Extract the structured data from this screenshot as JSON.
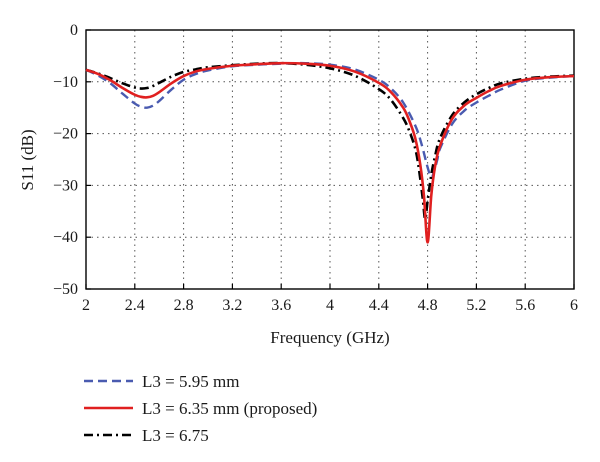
{
  "chart_data": {
    "type": "line",
    "xlabel": "Frequency (GHz)",
    "ylabel": "S11 (dB)",
    "xlim": [
      2,
      6
    ],
    "ylim": [
      -50,
      0
    ],
    "xticks": [
      2,
      2.4,
      2.8,
      3.2,
      3.6,
      4,
      4.4,
      4.8,
      5.2,
      5.6,
      6
    ],
    "yticks": [
      0,
      -10,
      -20,
      -30,
      -40,
      -50
    ],
    "grid": true,
    "legend_position": "bottom-left, below plot",
    "series": [
      {
        "name": "L3 = 5.95 mm",
        "color": "#4a5bb0",
        "dash": "dashed",
        "x": [
          2.0,
          2.1,
          2.2,
          2.3,
          2.4,
          2.45,
          2.5,
          2.55,
          2.6,
          2.7,
          2.8,
          2.9,
          3.0,
          3.2,
          3.4,
          3.6,
          3.8,
          4.0,
          4.2,
          4.4,
          4.5,
          4.6,
          4.7,
          4.75,
          4.8,
          4.83,
          4.85,
          4.88,
          4.9,
          5.0,
          5.1,
          5.2,
          5.3,
          5.4,
          5.6,
          5.8,
          6.0
        ],
        "y": [
          -7.7,
          -8.8,
          -10.3,
          -12.3,
          -14.2,
          -14.8,
          -15.0,
          -14.6,
          -13.7,
          -11.5,
          -9.6,
          -8.5,
          -7.8,
          -7.0,
          -6.7,
          -6.5,
          -6.4,
          -6.7,
          -7.6,
          -9.6,
          -11.3,
          -14.0,
          -18.5,
          -22.0,
          -26.5,
          -28.5,
          -27.5,
          -25.0,
          -23.0,
          -18.2,
          -15.6,
          -14.0,
          -12.7,
          -11.5,
          -9.8,
          -9.2,
          -8.9
        ]
      },
      {
        "name": "L3 = 6.35 mm (proposed)",
        "color": "#e02020",
        "dash": "solid",
        "x": [
          2.0,
          2.1,
          2.2,
          2.3,
          2.4,
          2.45,
          2.5,
          2.55,
          2.6,
          2.7,
          2.8,
          2.9,
          3.0,
          3.2,
          3.4,
          3.6,
          3.8,
          4.0,
          4.2,
          4.4,
          4.5,
          4.6,
          4.65,
          4.7,
          4.74,
          4.77,
          4.8,
          4.83,
          4.86,
          4.9,
          5.0,
          5.1,
          5.2,
          5.3,
          5.4,
          5.6,
          5.8,
          6.0
        ],
        "y": [
          -7.7,
          -8.5,
          -9.7,
          -11.2,
          -12.5,
          -12.9,
          -13.0,
          -12.7,
          -12.0,
          -10.3,
          -8.9,
          -8.0,
          -7.5,
          -6.9,
          -6.6,
          -6.4,
          -6.5,
          -6.9,
          -8.0,
          -10.2,
          -12.0,
          -15.0,
          -17.5,
          -21.0,
          -26.0,
          -32.0,
          -41.0,
          -32.0,
          -26.5,
          -22.5,
          -17.2,
          -14.6,
          -13.1,
          -11.8,
          -10.8,
          -9.6,
          -9.1,
          -8.9
        ]
      },
      {
        "name": "L3 = 6.75",
        "color": "#000000",
        "dash": "dash-dot",
        "x": [
          2.0,
          2.1,
          2.2,
          2.3,
          2.4,
          2.45,
          2.5,
          2.55,
          2.6,
          2.7,
          2.8,
          2.9,
          3.0,
          3.2,
          3.4,
          3.6,
          3.8,
          4.0,
          4.2,
          4.4,
          4.5,
          4.6,
          4.65,
          4.7,
          4.73,
          4.76,
          4.78,
          4.8,
          4.83,
          4.86,
          4.9,
          5.0,
          5.1,
          5.2,
          5.3,
          5.4,
          5.6,
          5.8,
          6.0
        ],
        "y": [
          -7.7,
          -8.4,
          -9.3,
          -10.3,
          -11.1,
          -11.3,
          -11.2,
          -10.8,
          -10.2,
          -9.0,
          -8.1,
          -7.6,
          -7.2,
          -6.8,
          -6.5,
          -6.4,
          -6.7,
          -7.4,
          -8.8,
          -11.4,
          -13.5,
          -17.0,
          -19.5,
          -23.0,
          -27.0,
          -32.5,
          -36.5,
          -33.0,
          -28.0,
          -24.5,
          -21.0,
          -16.5,
          -14.0,
          -12.4,
          -11.2,
          -10.3,
          -9.4,
          -9.0,
          -8.8
        ]
      }
    ]
  }
}
